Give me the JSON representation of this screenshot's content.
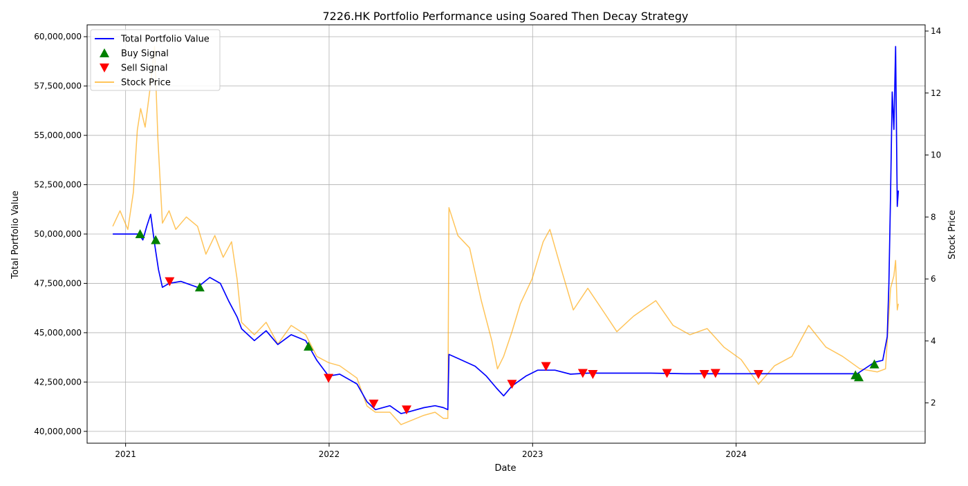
{
  "chart_data": {
    "type": "line",
    "title": "7226.HK Portfolio Performance using Soared Then Decay Strategy",
    "xlabel": "Date",
    "ylabel": "Total Portfolio Value",
    "y2label": "Stock Price",
    "x_ticks": [
      "2021",
      "2022",
      "2023",
      "2024"
    ],
    "y_ticks": [
      "40,000,000",
      "42,500,000",
      "45,000,000",
      "47,500,000",
      "50,000,000",
      "52,500,000",
      "55,000,000",
      "57,500,000",
      "60,000,000"
    ],
    "y2_ticks": [
      "2",
      "4",
      "6",
      "8",
      "10",
      "12",
      "14"
    ],
    "xlim": [
      "2020-10-24",
      "2024-12-05"
    ],
    "ylim": [
      39400000,
      60600000
    ],
    "y2lim": [
      0.7,
      14.2
    ],
    "grid": true,
    "legend_position": "top-left",
    "colors": {
      "portfolio": "#0000ff",
      "buy": "#008000",
      "sell": "#ff0000",
      "price": "#ffa500"
    },
    "legend": [
      {
        "label": "Total Portfolio Value",
        "kind": "line",
        "color": "#0000ff"
      },
      {
        "label": "Buy Signal",
        "kind": "up-triangle",
        "color": "#008000"
      },
      {
        "label": "Sell Signal",
        "kind": "down-triangle",
        "color": "#ff0000"
      },
      {
        "label": "Stock Price",
        "kind": "line",
        "color": "#ffa500"
      }
    ],
    "series": [
      {
        "name": "Total Portfolio Value",
        "axis": "left",
        "points": [
          [
            "2020-12-09",
            50000000
          ],
          [
            "2021-01-25",
            50000000
          ],
          [
            "2021-02-01",
            49700000
          ],
          [
            "2021-02-08",
            50400000
          ],
          [
            "2021-02-15",
            51000000
          ],
          [
            "2021-02-22",
            49500000
          ],
          [
            "2021-03-01",
            48200000
          ],
          [
            "2021-03-08",
            47300000
          ],
          [
            "2021-03-20",
            47500000
          ],
          [
            "2021-04-10",
            47600000
          ],
          [
            "2021-05-10",
            47300000
          ],
          [
            "2021-06-01",
            47800000
          ],
          [
            "2021-06-20",
            47500000
          ],
          [
            "2021-07-05",
            46600000
          ],
          [
            "2021-07-20",
            45800000
          ],
          [
            "2021-07-28",
            45200000
          ],
          [
            "2021-08-20",
            44600000
          ],
          [
            "2021-09-10",
            45100000
          ],
          [
            "2021-10-01",
            44400000
          ],
          [
            "2021-10-25",
            44900000
          ],
          [
            "2021-11-20",
            44600000
          ],
          [
            "2021-12-10",
            43600000
          ],
          [
            "2021-12-31",
            42800000
          ],
          [
            "2022-01-20",
            42900000
          ],
          [
            "2022-02-20",
            42400000
          ],
          [
            "2022-03-10",
            41500000
          ],
          [
            "2022-03-25",
            41100000
          ],
          [
            "2022-04-20",
            41300000
          ],
          [
            "2022-05-10",
            40900000
          ],
          [
            "2022-05-25",
            41000000
          ],
          [
            "2022-06-20",
            41200000
          ],
          [
            "2022-07-10",
            41300000
          ],
          [
            "2022-07-25",
            41200000
          ],
          [
            "2022-08-02",
            41100000
          ],
          [
            "2022-08-04",
            43900000
          ],
          [
            "2022-08-20",
            43700000
          ],
          [
            "2022-09-20",
            43300000
          ],
          [
            "2022-10-10",
            42800000
          ],
          [
            "2022-10-28",
            42200000
          ],
          [
            "2022-11-10",
            41800000
          ],
          [
            "2022-11-25",
            42300000
          ],
          [
            "2022-12-20",
            42800000
          ],
          [
            "2023-01-10",
            43100000
          ],
          [
            "2023-02-10",
            43100000
          ],
          [
            "2023-03-10",
            42900000
          ],
          [
            "2023-04-10",
            42950000
          ],
          [
            "2023-06-01",
            42950000
          ],
          [
            "2023-08-01",
            42950000
          ],
          [
            "2023-10-01",
            42920000
          ],
          [
            "2024-01-01",
            42920000
          ],
          [
            "2024-05-01",
            42920000
          ],
          [
            "2024-08-05",
            42920000
          ],
          [
            "2024-08-20",
            43200000
          ],
          [
            "2024-09-05",
            43500000
          ],
          [
            "2024-09-20",
            43600000
          ],
          [
            "2024-09-28",
            44800000
          ],
          [
            "2024-10-01",
            47500000
          ],
          [
            "2024-10-04",
            52000000
          ],
          [
            "2024-10-07",
            57200000
          ],
          [
            "2024-10-10",
            55300000
          ],
          [
            "2024-10-13",
            59500000
          ],
          [
            "2024-10-16",
            51400000
          ],
          [
            "2024-10-18",
            52200000
          ]
        ]
      },
      {
        "name": "Stock Price",
        "axis": "right",
        "points": [
          [
            "2020-12-09",
            7.7
          ],
          [
            "2020-12-22",
            8.2
          ],
          [
            "2021-01-05",
            7.6
          ],
          [
            "2021-01-15",
            8.8
          ],
          [
            "2021-01-22",
            10.8
          ],
          [
            "2021-01-28",
            11.5
          ],
          [
            "2021-02-05",
            10.9
          ],
          [
            "2021-02-15",
            12.3
          ],
          [
            "2021-02-22",
            13.5
          ],
          [
            "2021-02-28",
            10.5
          ],
          [
            "2021-03-08",
            7.8
          ],
          [
            "2021-03-20",
            8.2
          ],
          [
            "2021-04-01",
            7.6
          ],
          [
            "2021-04-20",
            8.0
          ],
          [
            "2021-05-10",
            7.7
          ],
          [
            "2021-05-25",
            6.8
          ],
          [
            "2021-06-10",
            7.4
          ],
          [
            "2021-06-25",
            6.7
          ],
          [
            "2021-07-10",
            7.2
          ],
          [
            "2021-07-20",
            6.0
          ],
          [
            "2021-07-28",
            4.6
          ],
          [
            "2021-08-20",
            4.2
          ],
          [
            "2021-09-10",
            4.6
          ],
          [
            "2021-10-01",
            3.9
          ],
          [
            "2021-10-25",
            4.5
          ],
          [
            "2021-11-20",
            4.2
          ],
          [
            "2021-12-10",
            3.5
          ],
          [
            "2021-12-31",
            3.3
          ],
          [
            "2022-01-20",
            3.2
          ],
          [
            "2022-02-20",
            2.8
          ],
          [
            "2022-03-10",
            1.9
          ],
          [
            "2022-03-25",
            1.7
          ],
          [
            "2022-04-20",
            1.7
          ],
          [
            "2022-05-10",
            1.3
          ],
          [
            "2022-06-20",
            1.6
          ],
          [
            "2022-07-10",
            1.7
          ],
          [
            "2022-07-25",
            1.5
          ],
          [
            "2022-08-02",
            1.5
          ],
          [
            "2022-08-04",
            8.3
          ],
          [
            "2022-08-20",
            7.4
          ],
          [
            "2022-09-10",
            7.0
          ],
          [
            "2022-10-01",
            5.3
          ],
          [
            "2022-10-20",
            4.0
          ],
          [
            "2022-10-30",
            3.1
          ],
          [
            "2022-11-10",
            3.5
          ],
          [
            "2022-11-25",
            4.3
          ],
          [
            "2022-12-10",
            5.2
          ],
          [
            "2022-12-31",
            6.0
          ],
          [
            "2023-01-20",
            7.2
          ],
          [
            "2023-02-01",
            7.6
          ],
          [
            "2023-02-20",
            6.4
          ],
          [
            "2023-03-15",
            5.0
          ],
          [
            "2023-04-10",
            5.7
          ],
          [
            "2023-05-10",
            4.9
          ],
          [
            "2023-06-01",
            4.3
          ],
          [
            "2023-07-01",
            4.8
          ],
          [
            "2023-08-10",
            5.3
          ],
          [
            "2023-09-10",
            4.5
          ],
          [
            "2023-10-10",
            4.2
          ],
          [
            "2023-11-10",
            4.4
          ],
          [
            "2023-12-10",
            3.8
          ],
          [
            "2024-01-10",
            3.4
          ],
          [
            "2024-02-10",
            2.6
          ],
          [
            "2024-03-10",
            3.2
          ],
          [
            "2024-04-10",
            3.5
          ],
          [
            "2024-05-10",
            4.5
          ],
          [
            "2024-06-10",
            3.8
          ],
          [
            "2024-07-10",
            3.5
          ],
          [
            "2024-08-10",
            3.1
          ],
          [
            "2024-09-10",
            3.0
          ],
          [
            "2024-09-25",
            3.1
          ],
          [
            "2024-10-04",
            5.7
          ],
          [
            "2024-10-10",
            6.1
          ],
          [
            "2024-10-13",
            6.6
          ],
          [
            "2024-10-16",
            5.0
          ],
          [
            "2024-10-18",
            5.2
          ]
        ]
      }
    ],
    "buy_signals": [
      [
        "2021-01-27",
        50000000
      ],
      [
        "2021-02-24",
        49700000
      ],
      [
        "2021-05-14",
        47300000
      ],
      [
        "2021-11-25",
        44300000
      ],
      [
        "2024-08-02",
        42850000
      ],
      [
        "2024-08-08",
        42750000
      ],
      [
        "2024-09-05",
        43400000
      ]
    ],
    "sell_signals": [
      [
        "2021-03-21",
        47600000
      ],
      [
        "2021-12-31",
        42700000
      ],
      [
        "2022-03-22",
        41400000
      ],
      [
        "2022-05-20",
        41100000
      ],
      [
        "2022-11-25",
        42400000
      ],
      [
        "2023-01-25",
        43300000
      ],
      [
        "2023-04-01",
        42950000
      ],
      [
        "2023-04-19",
        42900000
      ],
      [
        "2023-08-30",
        42950000
      ],
      [
        "2023-11-05",
        42900000
      ],
      [
        "2023-11-25",
        42950000
      ],
      [
        "2024-02-10",
        42900000
      ]
    ]
  }
}
